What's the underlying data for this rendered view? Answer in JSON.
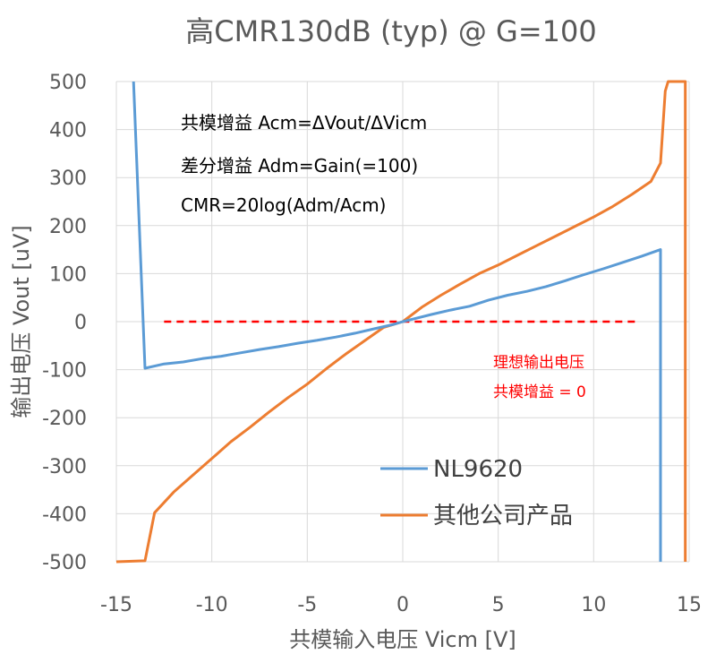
{
  "chart_data": {
    "type": "line",
    "title": "高CMR130dB (typ) @ G=100",
    "xlabel": "共模输入电压 Vicm [V]",
    "ylabel": "输出电压 Vout [uV]",
    "xlim": [
      -15,
      15
    ],
    "ylim": [
      -500,
      500
    ],
    "x_ticks": [
      -15,
      -10,
      -5,
      0,
      5,
      10,
      15
    ],
    "y_ticks": [
      500,
      400,
      300,
      200,
      100,
      0,
      -100,
      -200,
      -300,
      -400,
      -500
    ],
    "grid": true,
    "legend_position": "bottom-right",
    "annotations": {
      "formula_lines": [
        "共模增益 Acm=ΔVout/ΔVicm",
        "差分增益 Adm=Gain(=100)",
        "CMR=20log(Adm/Acm)"
      ],
      "ideal_lines": [
        "理想输出电压",
        "共模增益 = 0"
      ]
    },
    "ideal_line": {
      "x": [
        -12.5,
        12.3
      ],
      "y": [
        0,
        0
      ],
      "color": "#ff0000"
    },
    "series": [
      {
        "name": "NL9620",
        "color": "#5b9bd5",
        "x": [
          -14.1,
          -13.5,
          -12.5,
          -11.5,
          -10.5,
          -9.5,
          -8.5,
          -7.5,
          -6.5,
          -5.5,
          -4.5,
          -3.5,
          -2.5,
          -1.5,
          -0.5,
          0,
          0.5,
          1.5,
          2.5,
          3.5,
          4.5,
          5.5,
          6.5,
          7.5,
          8.5,
          9.5,
          10.5,
          11.5,
          12.5,
          13.5,
          13.5
        ],
        "y": [
          500,
          -97,
          -88,
          -84,
          -77,
          -72,
          -65,
          -58,
          -52,
          -45,
          -39,
          -32,
          -24,
          -15,
          -6,
          0,
          5,
          15,
          24,
          32,
          45,
          55,
          63,
          73,
          85,
          98,
          110,
          123,
          136,
          150,
          -500
        ]
      },
      {
        "name": "其他公司产品",
        "color": "#ed7d31",
        "x": [
          -15,
          -13.5,
          -13,
          -12,
          -11,
          -10,
          -9,
          -8,
          -7,
          -6,
          -5,
          -4,
          -3,
          -2,
          -1,
          0,
          1,
          2,
          3,
          4,
          5,
          6,
          7,
          8,
          9,
          10,
          11,
          12,
          13,
          13.5,
          13.75,
          13.9,
          14.8,
          14.8
        ],
        "y": [
          -500,
          -498,
          -398,
          -355,
          -320,
          -285,
          -250,
          -220,
          -188,
          -158,
          -130,
          -98,
          -68,
          -40,
          -12,
          0,
          30,
          55,
          78,
          100,
          118,
          138,
          158,
          178,
          198,
          218,
          240,
          265,
          292,
          330,
          480,
          500,
          500,
          -500
        ]
      }
    ]
  }
}
